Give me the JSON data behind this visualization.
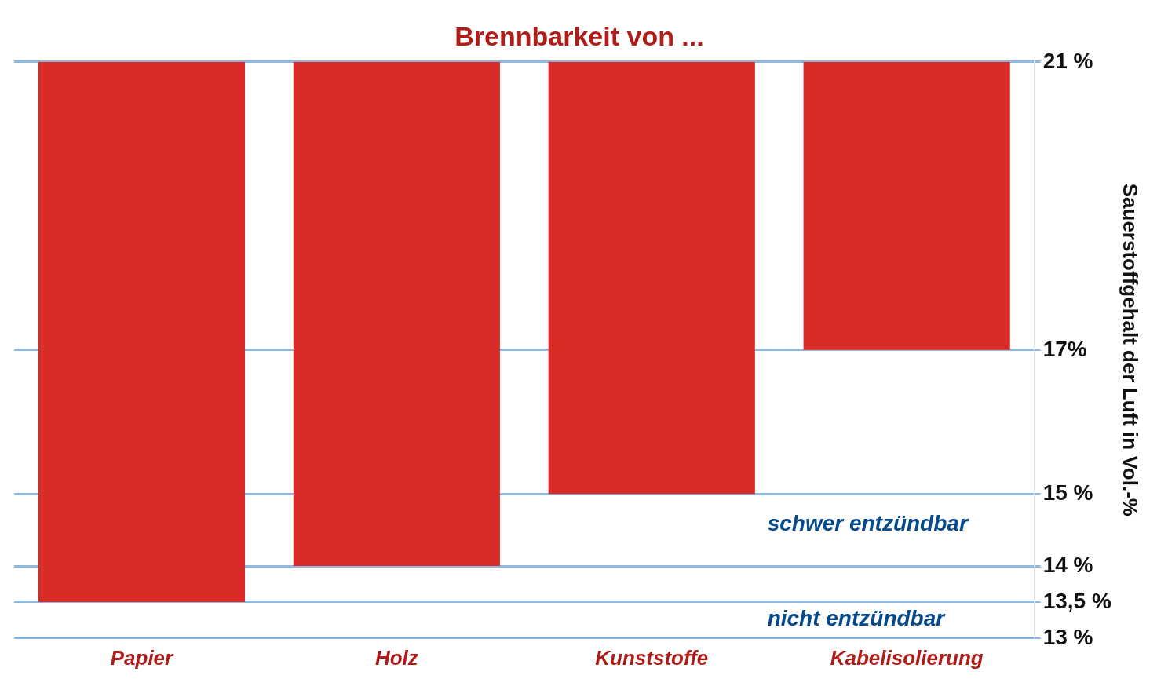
{
  "chart_data": {
    "type": "bar",
    "title": "Brennbarkeit von ...",
    "ylabel": "Sauerstoffgehalt der Luft in Vol.-%",
    "categories": [
      "Papier",
      "Holz",
      "Kunststoffe",
      "Kabelisolierung"
    ],
    "base": [
      21,
      21,
      21,
      21
    ],
    "values": [
      -7.5,
      -7,
      -6,
      -4
    ],
    "color": "#d92b27",
    "ylim": [
      13,
      21
    ],
    "yticks": [
      {
        "value": 13,
        "label": "13 %"
      },
      {
        "value": 13.5,
        "label": "13,5 %"
      },
      {
        "value": 14,
        "label": "14 %"
      },
      {
        "value": 15,
        "label": "15 %"
      },
      {
        "value": 17,
        "label": "17%"
      },
      {
        "value": 21,
        "label": "21 %"
      }
    ],
    "grid": "y",
    "annotations": [
      "schwer entzündbar",
      "nicht entzündbar"
    ]
  }
}
